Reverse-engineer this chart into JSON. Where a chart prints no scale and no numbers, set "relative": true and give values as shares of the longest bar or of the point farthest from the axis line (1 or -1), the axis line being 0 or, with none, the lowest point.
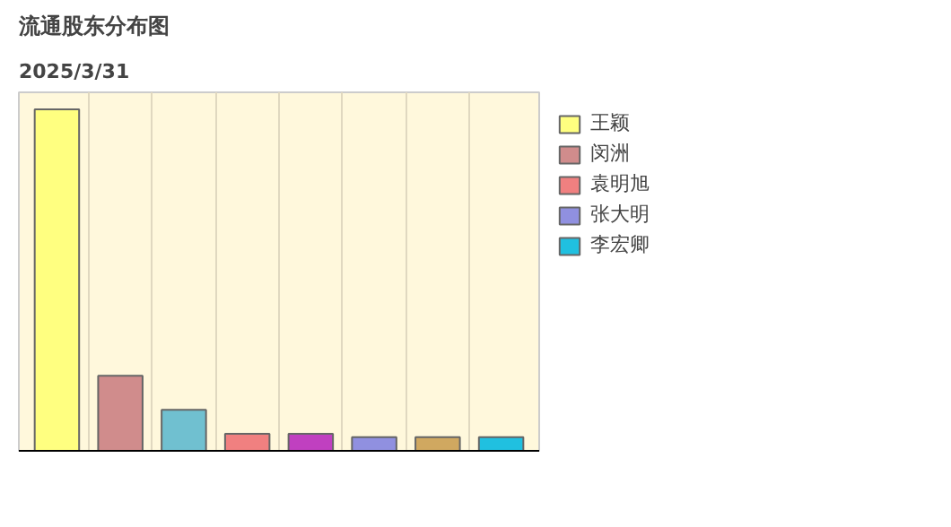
{
  "chart_data": {
    "type": "bar",
    "title": "流通股东分布图",
    "subtitle": "2025/3/31",
    "relative": true,
    "stacked": true,
    "grid": "x",
    "legend": "right",
    "categories": [
      null,
      null,
      null,
      null,
      null,
      null,
      null,
      null
    ],
    "series": [
      {
        "name": "王颖",
        "color": "#ffff80",
        "values": [
          1,
          null,
          null,
          null,
          null,
          null,
          null,
          null
        ]
      },
      {
        "name": "闵洲",
        "color": "#d08c8c",
        "values": [
          null,
          0.22,
          null,
          null,
          null,
          null,
          null,
          null
        ]
      },
      {
        "color": "#70c0d0",
        "values": [
          null,
          null,
          0.12,
          null,
          null,
          null,
          null,
          null
        ]
      },
      {
        "name": "袁明旭",
        "color": "#f08080",
        "values": [
          null,
          null,
          null,
          0.05,
          null,
          null,
          null,
          null
        ]
      },
      {
        "color": "#c040c0",
        "values": [
          null,
          null,
          null,
          null,
          0.05,
          null,
          null,
          null
        ]
      },
      {
        "name": "张大明",
        "color": "#9090e0",
        "values": [
          null,
          null,
          null,
          null,
          null,
          0.04,
          null,
          null
        ]
      },
      {
        "color": "#d0a860",
        "values": [
          null,
          null,
          null,
          null,
          null,
          null,
          0.04,
          null
        ]
      },
      {
        "name": "李宏卿",
        "color": "#20c0e0",
        "values": [
          null,
          null,
          null,
          null,
          null,
          null,
          null,
          0.04
        ]
      }
    ]
  }
}
